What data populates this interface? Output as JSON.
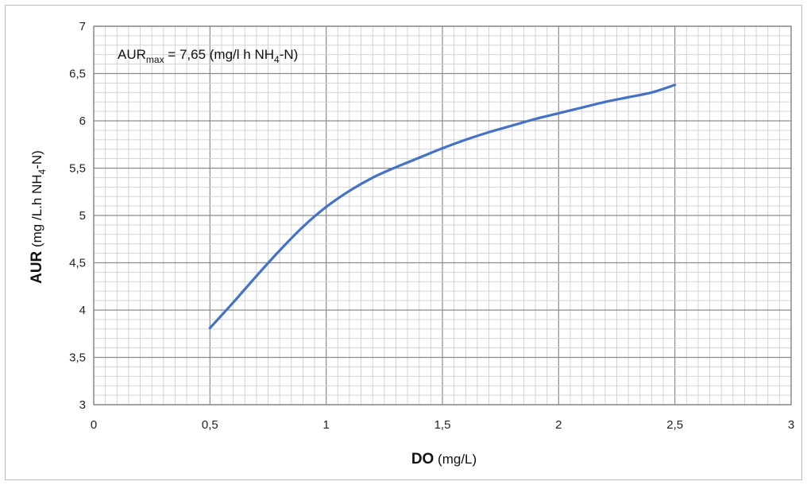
{
  "chart_data": {
    "type": "line",
    "title": "",
    "xlabel": {
      "bold": "DO",
      "rest": " (mg/L)"
    },
    "ylabel": {
      "bold": "AUR",
      "rest_a": " (mg /L.h NH",
      "sub": "4",
      "rest_b": "-N)"
    },
    "xlim": [
      0,
      3
    ],
    "ylim": [
      3,
      7
    ],
    "x_ticks": [
      "0",
      "0,5",
      "1",
      "1,5",
      "2",
      "2,5",
      "3"
    ],
    "y_ticks": [
      "3",
      "3,5",
      "4",
      "4,5",
      "5",
      "5,5",
      "6",
      "6,5",
      "7"
    ],
    "grid": true,
    "annotation": {
      "a": "AUR",
      "sub1": "max",
      "b": " = 7,65 (mg/l h NH",
      "sub2": "4",
      "c": "-N)"
    },
    "series": [
      {
        "color": "#4472C4",
        "x": [
          0.5,
          0.6,
          0.7,
          0.8,
          0.9,
          1.0,
          1.1,
          1.2,
          1.3,
          1.4,
          1.5,
          1.6,
          1.7,
          1.8,
          1.9,
          2.0,
          2.1,
          2.2,
          2.3,
          2.4,
          2.5
        ],
        "y": [
          3.81,
          4.08,
          4.36,
          4.63,
          4.88,
          5.09,
          5.26,
          5.4,
          5.51,
          5.61,
          5.71,
          5.8,
          5.88,
          5.95,
          6.02,
          6.08,
          6.14,
          6.2,
          6.25,
          6.3,
          6.38
        ]
      }
    ]
  }
}
